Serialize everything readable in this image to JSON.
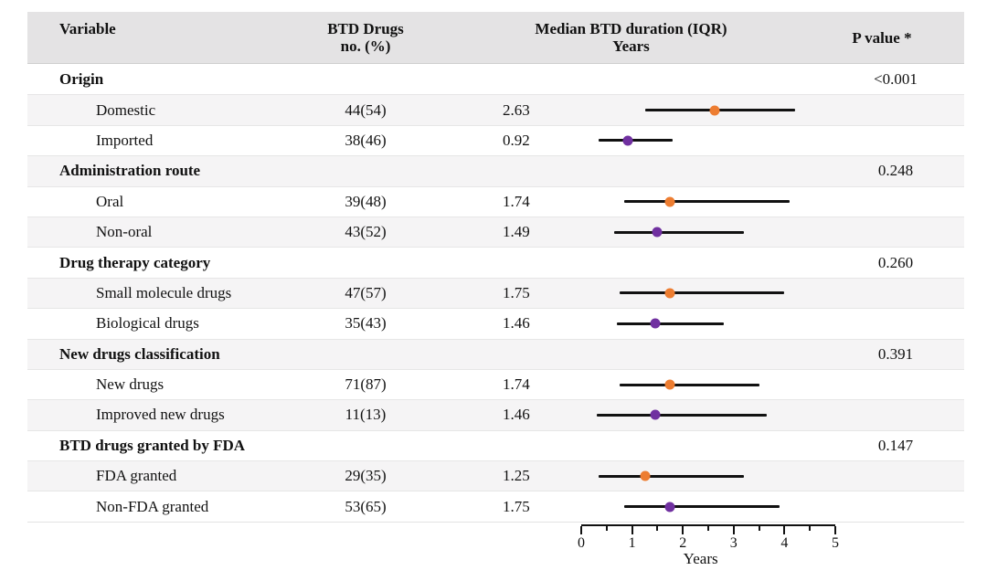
{
  "header": {
    "variable": "Variable",
    "drugs_line1": "BTD Drugs",
    "drugs_line2": "no. (%)",
    "median_line1": "Median BTD duration (IQR)",
    "median_line2": "Years",
    "p_value": "P value *"
  },
  "colors": {
    "orange_marker": "#ED7D31",
    "purple_marker": "#7030A0",
    "header_bg": "#e4e3e4",
    "band_bg": "#f5f4f5",
    "line": "#111111"
  },
  "chart_data": {
    "type": "forest",
    "title": "",
    "xlabel": "Years",
    "x_axis": {
      "min": 0,
      "max": 5,
      "major_ticks": [
        0,
        1,
        2,
        3,
        4,
        5
      ],
      "minor_tick_step": 0.5,
      "label": "Years"
    },
    "groups": [
      {
        "label": "Origin",
        "p_value": "<0.001",
        "items": [
          {
            "label": "Domestic",
            "count": "44(54)",
            "median": 2.63,
            "iqr_low": 1.25,
            "iqr_high": 4.2,
            "marker": "orange"
          },
          {
            "label": "Imported",
            "count": "38(46)",
            "median": 0.92,
            "iqr_low": 0.35,
            "iqr_high": 1.8,
            "marker": "purple"
          }
        ]
      },
      {
        "label": "Administration route",
        "p_value": "0.248",
        "items": [
          {
            "label": "Oral",
            "count": "39(48)",
            "median": 1.74,
            "iqr_low": 0.85,
            "iqr_high": 4.1,
            "marker": "orange"
          },
          {
            "label": "Non-oral",
            "count": "43(52)",
            "median": 1.49,
            "iqr_low": 0.65,
            "iqr_high": 3.2,
            "marker": "purple"
          }
        ]
      },
      {
        "label": "Drug therapy category",
        "p_value": "0.260",
        "items": [
          {
            "label": "Small molecule drugs",
            "count": "47(57)",
            "median": 1.75,
            "iqr_low": 0.75,
            "iqr_high": 4.0,
            "marker": "orange"
          },
          {
            "label": "Biological drugs",
            "count": "35(43)",
            "median": 1.46,
            "iqr_low": 0.7,
            "iqr_high": 2.8,
            "marker": "purple"
          }
        ]
      },
      {
        "label": "New drugs classification",
        "p_value": "0.391",
        "items": [
          {
            "label": "New drugs",
            "count": "71(87)",
            "median": 1.74,
            "iqr_low": 0.75,
            "iqr_high": 3.5,
            "marker": "orange"
          },
          {
            "label": "Improved new drugs",
            "count": "11(13)",
            "median": 1.46,
            "iqr_low": 0.3,
            "iqr_high": 3.65,
            "marker": "purple"
          }
        ]
      },
      {
        "label": "BTD drugs granted by FDA",
        "p_value": "0.147",
        "items": [
          {
            "label": "FDA granted",
            "count": "29(35)",
            "median": 1.25,
            "iqr_low": 0.35,
            "iqr_high": 3.2,
            "marker": "orange"
          },
          {
            "label": "Non-FDA granted",
            "count": "53(65)",
            "median": 1.75,
            "iqr_low": 0.85,
            "iqr_high": 3.9,
            "marker": "purple"
          }
        ]
      }
    ]
  }
}
